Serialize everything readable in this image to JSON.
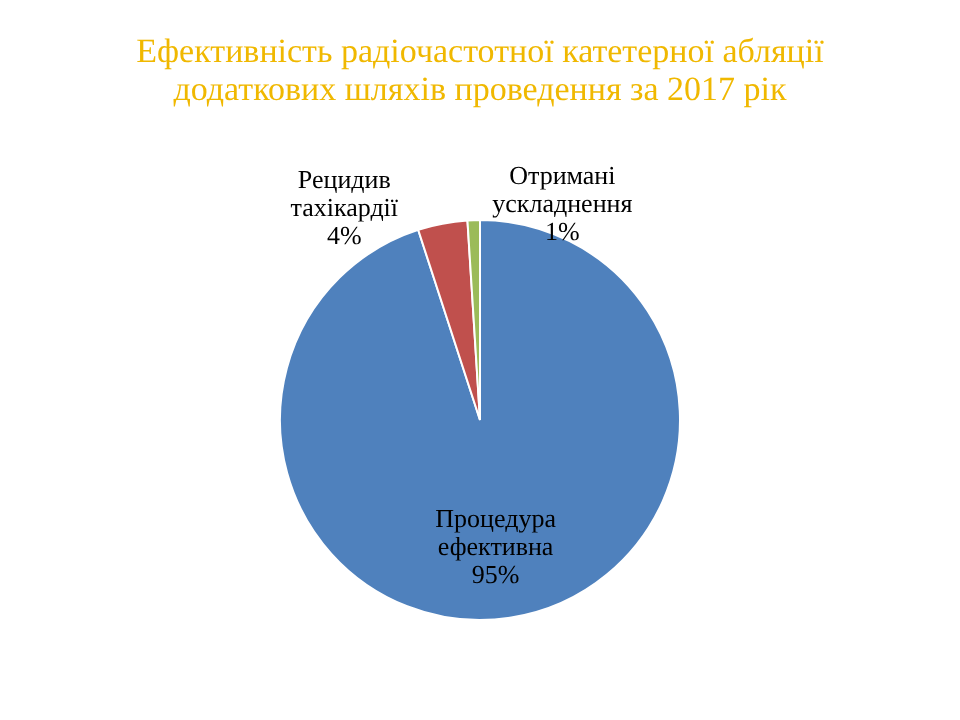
{
  "chart_data": {
    "type": "pie",
    "title": "Ефективність радіочастотної катетерної абляції\nдодаткових шляхів проведення  за 2017 рік",
    "categories": [
      "Процедура ефективна",
      "Рецидив тахікардії",
      "Отримані ускладнення"
    ],
    "values": [
      95,
      4,
      1
    ],
    "colors": [
      "#4f81bd",
      "#c0504d",
      "#9bbb59"
    ],
    "value_labels": [
      "95%",
      "4%",
      "1%"
    ],
    "legend": false
  }
}
